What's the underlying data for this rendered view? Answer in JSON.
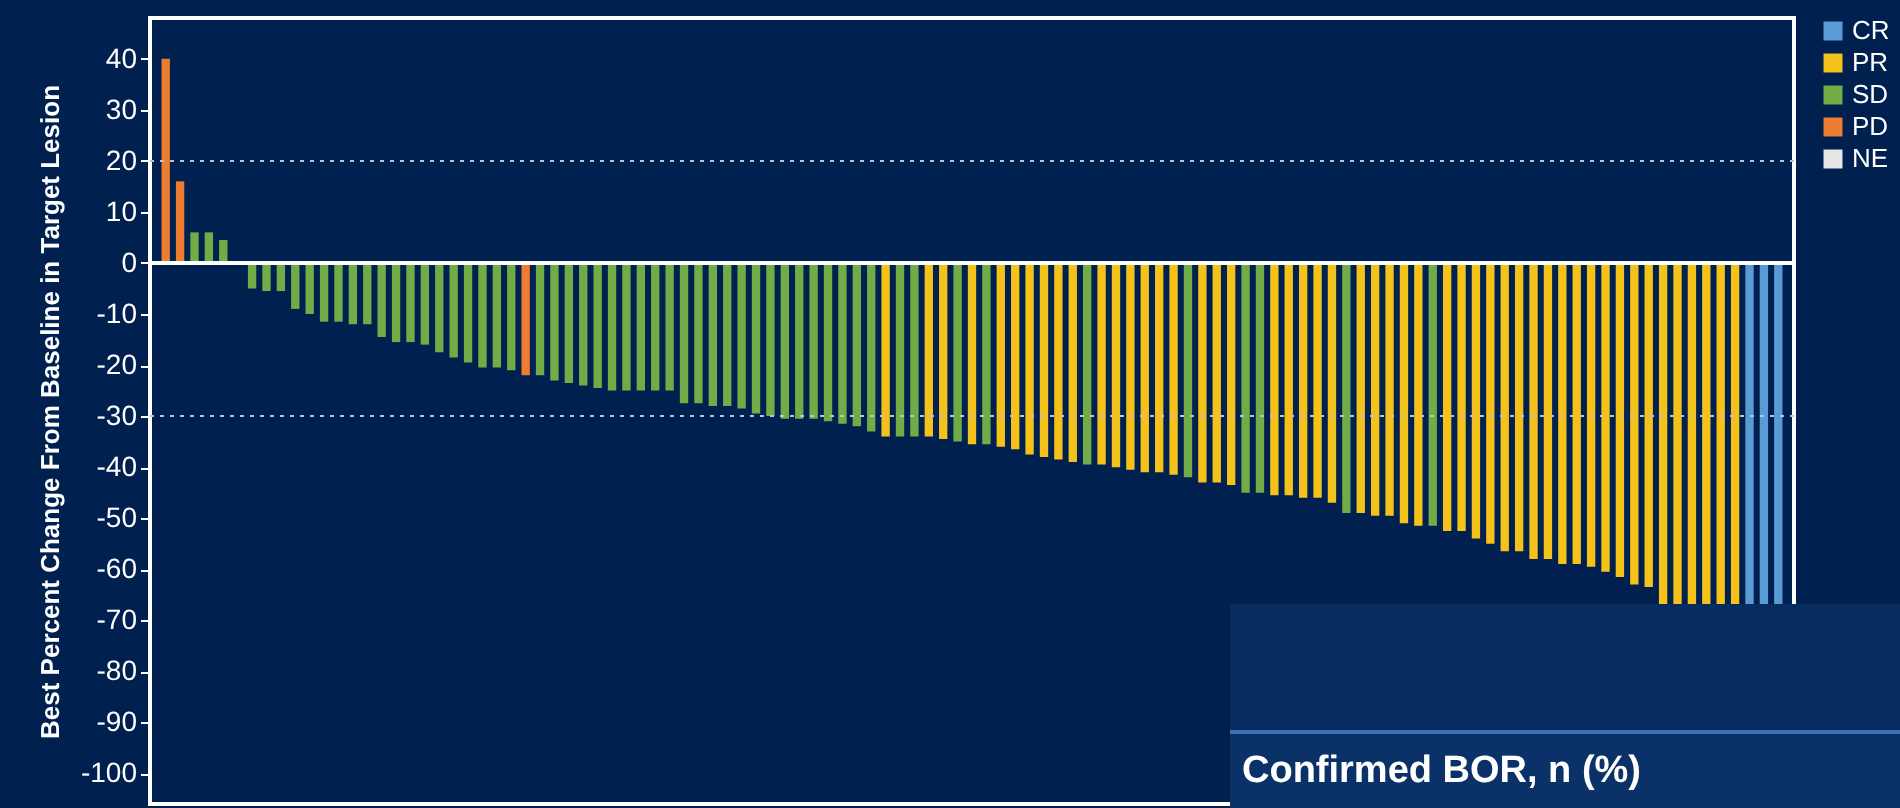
{
  "chart_data": {
    "type": "bar",
    "ylabel": "Best Percent Change From Baseline in Target Lesion",
    "categories": [
      null,
      null,
      null,
      null,
      null,
      null,
      null,
      null,
      null,
      null,
      null,
      null,
      null,
      null,
      null,
      null,
      null,
      null,
      null,
      null,
      null,
      null,
      null,
      null,
      null,
      null,
      null,
      null,
      null,
      null,
      null,
      null,
      null,
      null,
      null,
      null,
      null,
      null,
      null,
      null,
      null,
      null,
      null,
      null,
      null,
      null,
      null,
      null,
      null,
      null,
      null,
      null,
      null,
      null,
      null,
      null,
      null,
      null,
      null,
      null,
      null,
      null,
      null,
      null,
      null,
      null,
      null,
      null,
      null,
      null,
      null,
      null,
      null,
      null,
      null,
      null,
      null,
      null,
      null,
      null,
      null,
      null,
      null,
      null,
      null,
      null,
      null,
      null,
      null,
      null,
      null,
      null,
      null,
      null,
      null,
      null,
      null,
      null,
      null,
      null,
      null,
      null,
      null,
      null,
      null,
      null,
      null,
      null,
      null,
      null,
      null,
      null,
      null
    ],
    "series": [
      {
        "name": "CR",
        "color": "#5b9bd5",
        "values": [
          null,
          null,
          null,
          null,
          null,
          null,
          null,
          null,
          null,
          null,
          null,
          null,
          null,
          null,
          null,
          null,
          null,
          null,
          null,
          null,
          null,
          null,
          null,
          null,
          null,
          null,
          null,
          null,
          null,
          null,
          null,
          null,
          null,
          null,
          null,
          null,
          null,
          null,
          null,
          null,
          null,
          null,
          null,
          null,
          null,
          null,
          null,
          null,
          null,
          null,
          null,
          null,
          null,
          null,
          null,
          null,
          null,
          null,
          null,
          null,
          null,
          null,
          null,
          null,
          null,
          null,
          null,
          null,
          null,
          null,
          null,
          null,
          null,
          null,
          null,
          null,
          null,
          null,
          null,
          null,
          null,
          null,
          null,
          null,
          null,
          null,
          null,
          null,
          null,
          null,
          null,
          null,
          null,
          null,
          null,
          null,
          null,
          null,
          null,
          null,
          null,
          null,
          null,
          null,
          null,
          null,
          null,
          null,
          null,
          null,
          -67,
          -67,
          -67
        ]
      },
      {
        "name": "PR",
        "color": "#f5c21b",
        "values": [
          null,
          null,
          null,
          null,
          null,
          null,
          null,
          null,
          null,
          null,
          null,
          null,
          null,
          null,
          null,
          null,
          null,
          null,
          null,
          null,
          null,
          null,
          null,
          null,
          null,
          null,
          null,
          null,
          null,
          null,
          null,
          null,
          null,
          null,
          null,
          null,
          null,
          null,
          null,
          null,
          null,
          null,
          null,
          null,
          null,
          null,
          null,
          null,
          null,
          null,
          -34,
          null,
          null,
          -34,
          -34.5,
          null,
          -35.5,
          null,
          -36,
          -36.5,
          -37.5,
          -38,
          -38.5,
          -39,
          null,
          -39.5,
          -40,
          -40.5,
          -41,
          -41,
          -41.5,
          null,
          -43,
          -43,
          -43.5,
          null,
          null,
          -45.5,
          -45.5,
          -46,
          -46,
          -47,
          null,
          -49,
          -49.5,
          -49.5,
          -51,
          -51.5,
          null,
          -52.5,
          -52.5,
          -54,
          -55,
          -56.5,
          -56.5,
          -58,
          -58,
          -59,
          -59,
          -59.5,
          -60.5,
          -61.5,
          -63,
          -63.5,
          -67,
          -67,
          -67,
          -67,
          -67,
          -67,
          null,
          null,
          null
        ]
      },
      {
        "name": "SD",
        "color": "#70ad47",
        "values": [
          null,
          null,
          6,
          6,
          4.5,
          0,
          -5,
          -5.5,
          -5.5,
          -9,
          -10,
          -11.5,
          -11.5,
          -12,
          -12,
          -14.5,
          -15.5,
          -15.5,
          -16,
          -17.5,
          -18.5,
          -19.5,
          -20.5,
          -20.5,
          -21,
          null,
          -22,
          -23,
          -23.5,
          -24,
          -24.5,
          -25,
          -25,
          -25,
          -25,
          -25,
          -27.5,
          -27.5,
          -28,
          -28,
          -28.5,
          -29.5,
          -30,
          -30.5,
          -30.5,
          -30.5,
          -31,
          -31.5,
          -32,
          -33,
          null,
          -34,
          -34,
          null,
          null,
          -35,
          null,
          -35.5,
          null,
          null,
          null,
          null,
          null,
          null,
          -39.5,
          null,
          null,
          null,
          null,
          null,
          null,
          -42,
          null,
          null,
          null,
          -45,
          -45,
          null,
          null,
          null,
          null,
          null,
          -49,
          null,
          null,
          null,
          null,
          null,
          -51.5,
          null,
          null,
          null,
          null,
          null,
          null,
          null,
          null,
          null,
          null,
          null,
          null,
          null,
          null,
          null,
          null,
          null,
          null,
          null,
          null,
          null,
          null,
          null,
          null
        ]
      },
      {
        "name": "PD",
        "color": "#ed7d31",
        "values": [
          40,
          16,
          null,
          null,
          null,
          null,
          null,
          null,
          null,
          null,
          null,
          null,
          null,
          null,
          null,
          null,
          null,
          null,
          null,
          null,
          null,
          null,
          null,
          null,
          null,
          -22,
          null,
          null,
          null,
          null,
          null,
          null,
          null,
          null,
          null,
          null,
          null,
          null,
          null,
          null,
          null,
          null,
          null,
          null,
          null,
          null,
          null,
          null,
          null,
          null,
          null,
          null,
          null,
          null,
          null,
          null,
          null,
          null,
          null,
          null,
          null,
          null,
          null,
          null,
          null,
          null,
          null,
          null,
          null,
          null,
          null,
          null,
          null,
          null,
          null,
          null,
          null,
          null,
          null,
          null,
          null,
          null,
          null,
          null,
          null,
          null,
          null,
          null,
          null,
          null,
          null,
          null,
          null,
          null,
          null,
          null,
          null,
          null,
          null,
          null,
          null,
          null,
          null,
          null,
          null,
          null,
          null,
          null,
          null,
          null,
          null,
          null,
          null
        ]
      },
      {
        "name": "NE",
        "color": "#e6e6e6",
        "values": [
          null,
          null,
          null,
          null,
          null,
          null,
          null,
          null,
          null,
          null,
          null,
          null,
          null,
          null,
          null,
          null,
          null,
          null,
          null,
          null,
          null,
          null,
          null,
          null,
          null,
          null,
          null,
          null,
          null,
          null,
          null,
          null,
          null,
          null,
          null,
          null,
          null,
          null,
          null,
          null,
          null,
          null,
          null,
          null,
          null,
          null,
          null,
          null,
          null,
          null,
          null,
          null,
          null,
          null,
          null,
          null,
          null,
          null,
          null,
          null,
          null,
          null,
          null,
          null,
          null,
          null,
          null,
          null,
          null,
          null,
          null,
          null,
          null,
          null,
          null,
          null,
          null,
          null,
          null,
          null,
          null,
          null,
          null,
          null,
          null,
          null,
          null,
          null,
          null,
          null,
          null,
          null,
          null,
          null,
          null,
          null,
          null,
          null,
          null,
          null,
          null,
          null,
          null,
          null,
          null,
          null,
          null,
          null,
          null,
          null,
          null,
          null,
          null
        ]
      }
    ],
    "ylim": [
      -106,
      48
    ],
    "yticks": [
      40,
      30,
      20,
      10,
      0,
      -10,
      -20,
      -30,
      -40,
      -50,
      -60,
      -70,
      -80,
      -90,
      -100
    ],
    "ref_lines": [
      {
        "axis": "y",
        "value": 20,
        "color": "#b9c3d3",
        "line_style": "dotted"
      },
      {
        "axis": "y",
        "value": -30,
        "color": "#b9c3d3",
        "line_style": "dotted"
      },
      {
        "axis": "y",
        "value": 0,
        "color": "#ffffff",
        "line_style": "solid"
      }
    ],
    "annotations": [
      "Confirmed BOR, n (%)"
    ],
    "legend": "top right",
    "tick_labels": "y"
  }
}
